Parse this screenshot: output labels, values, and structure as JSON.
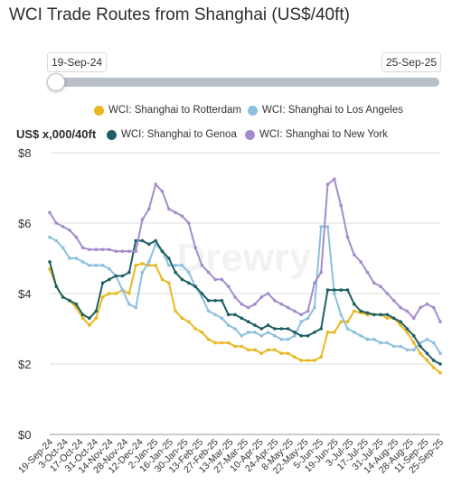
{
  "chart_data": {
    "type": "line",
    "title": "WCI Trade Routes from Shanghai (US$/40ft)",
    "ylabel": "US$ x,000/40ft",
    "ylim": [
      0,
      8
    ],
    "yticks": [
      {
        "value": 0,
        "label": "$0"
      },
      {
        "value": 2,
        "label": "$2"
      },
      {
        "value": 4,
        "label": "$4"
      },
      {
        "value": 6,
        "label": "$6"
      },
      {
        "value": 8,
        "label": "$8"
      }
    ],
    "grid": true,
    "legend_position": "top",
    "watermark": "Drewry",
    "range_selector": {
      "start": "19-Sep-24",
      "end": "25-Sep-25"
    },
    "x_tick_labels": [
      "19-Sep-24",
      "3-Oct-24",
      "17-Oct-24",
      "31-Oct-24",
      "14-Nov-24",
      "28-Nov-24",
      "12-Dec-24",
      "2-Jan-25",
      "16-Jan-25",
      "30-Jan-25",
      "13-Feb-25",
      "27-Feb-25",
      "13-Mar-25",
      "27-Mar-25",
      "10-Apr-25",
      "24-Apr-25",
      "8-May-25",
      "22-May-25",
      "5-Jun-25",
      "19-Jun-25",
      "3-Jul-25",
      "17-Jul-25",
      "31-Jul-25",
      "14-Aug-25",
      "28-Aug-25",
      "11-Sep-25",
      "25-Sep-25"
    ],
    "series": [
      {
        "name": "WCI: Shanghai to Rotterdam",
        "color": "#e9b81f",
        "values": [
          4.7,
          4.2,
          3.9,
          3.8,
          3.6,
          3.3,
          3.1,
          3.3,
          3.9,
          4.0,
          4.0,
          4.1,
          4.0,
          4.8,
          4.85,
          4.8,
          4.8,
          4.4,
          4.3,
          3.5,
          3.3,
          3.2,
          3.0,
          2.9,
          2.7,
          2.6,
          2.6,
          2.6,
          2.5,
          2.5,
          2.4,
          2.4,
          2.3,
          2.4,
          2.4,
          2.3,
          2.3,
          2.2,
          2.1,
          2.1,
          2.1,
          2.2,
          2.9,
          2.9,
          3.2,
          3.2,
          3.5,
          3.45,
          3.4,
          3.4,
          3.4,
          3.3,
          3.3,
          3.1,
          2.9,
          2.6,
          2.3,
          2.1,
          1.9,
          1.75
        ]
      },
      {
        "name": "WCI: Shanghai to Los Angeles",
        "color": "#8cc0df",
        "values": [
          5.6,
          5.5,
          5.3,
          5.0,
          5.0,
          4.9,
          4.8,
          4.8,
          4.8,
          4.7,
          4.5,
          4.1,
          3.7,
          3.6,
          4.6,
          4.9,
          5.4,
          5.2,
          4.8,
          4.8,
          4.8,
          4.6,
          4.2,
          3.9,
          3.5,
          3.4,
          3.3,
          3.1,
          3.0,
          2.8,
          2.9,
          2.9,
          2.8,
          2.9,
          2.8,
          2.7,
          2.7,
          2.8,
          3.2,
          3.3,
          3.6,
          5.9,
          5.9,
          4.0,
          3.4,
          3.0,
          2.9,
          2.8,
          2.7,
          2.7,
          2.6,
          2.6,
          2.5,
          2.5,
          2.4,
          2.4,
          2.6,
          2.7,
          2.6,
          2.3
        ]
      },
      {
        "name": "WCI: Shanghai to Genoa",
        "color": "#1f5f63",
        "values": [
          4.9,
          4.2,
          3.9,
          3.8,
          3.7,
          3.4,
          3.3,
          3.5,
          4.3,
          4.4,
          4.5,
          4.5,
          4.6,
          5.5,
          5.5,
          5.4,
          5.5,
          5.2,
          5.0,
          4.6,
          4.4,
          4.3,
          4.2,
          4.0,
          3.8,
          3.8,
          3.8,
          3.4,
          3.4,
          3.3,
          3.2,
          3.1,
          3.0,
          3.1,
          3.0,
          3.0,
          3.0,
          2.9,
          2.8,
          2.8,
          2.9,
          3.0,
          4.1,
          4.1,
          4.1,
          4.1,
          3.7,
          3.5,
          3.45,
          3.4,
          3.4,
          3.4,
          3.3,
          3.2,
          3.0,
          2.8,
          2.5,
          2.3,
          2.1,
          2.0
        ]
      },
      {
        "name": "WCI: Shanghai to New York",
        "color": "#a48ccb",
        "values": [
          6.3,
          6.0,
          5.9,
          5.8,
          5.6,
          5.3,
          5.25,
          5.25,
          5.25,
          5.25,
          5.2,
          5.2,
          5.2,
          5.2,
          6.1,
          6.4,
          7.1,
          6.9,
          6.4,
          6.3,
          6.2,
          6.0,
          5.3,
          4.8,
          4.6,
          4.4,
          4.4,
          4.2,
          3.9,
          3.7,
          3.6,
          3.7,
          3.9,
          4.0,
          3.8,
          3.7,
          3.6,
          3.5,
          3.4,
          3.5,
          4.3,
          4.6,
          7.1,
          7.25,
          6.5,
          5.6,
          5.1,
          4.9,
          4.6,
          4.3,
          4.2,
          4.0,
          3.8,
          3.6,
          3.5,
          3.3,
          3.6,
          3.7,
          3.6,
          3.2
        ]
      }
    ]
  }
}
